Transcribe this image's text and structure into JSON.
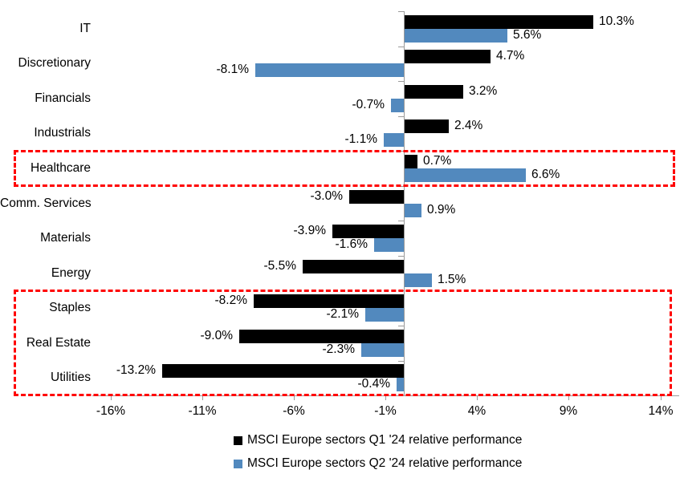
{
  "chart_data": {
    "type": "bar",
    "orientation": "horizontal",
    "categories": [
      "IT",
      "Discretionary",
      "Financials",
      "Industrials",
      "Healthcare",
      "Comm. Services",
      "Materials",
      "Energy",
      "Staples",
      "Real Estate",
      "Utilities"
    ],
    "series": [
      {
        "name": "MSCI Europe sectors Q1 '24 relative performance",
        "color": "#000000",
        "values": [
          10.3,
          4.7,
          3.2,
          2.4,
          0.7,
          -3.0,
          -3.9,
          -5.5,
          -8.2,
          -9.0,
          -13.2
        ]
      },
      {
        "name": "MSCI Europe sectors Q2 '24 relative performance",
        "color": "#5289be",
        "values": [
          5.6,
          -8.1,
          -0.7,
          -1.1,
          6.6,
          0.9,
          -1.6,
          1.5,
          -2.1,
          -2.3,
          -0.4
        ]
      }
    ],
    "data_labels": {
      "q1": [
        "10.3%",
        "4.7%",
        "3.2%",
        "2.4%",
        "0.7%",
        "-3.0%",
        "-3.9%",
        "-5.5%",
        "-8.2%",
        "-9.0%",
        "-13.2%"
      ],
      "q2": [
        "5.6%",
        "-8.1%",
        "-0.7%",
        "-1.1%",
        "6.6%",
        "0.9%",
        "-1.6%",
        "1.5%",
        "-2.1%",
        "-2.3%",
        "-0.4%"
      ]
    },
    "x_axis": {
      "tick_labels": [
        "-16%",
        "-11%",
        "-6%",
        "-1%",
        "4%",
        "9%",
        "14%"
      ],
      "tick_values": [
        -16,
        -11,
        -6,
        -1,
        4,
        9,
        14
      ],
      "min": -17,
      "max": 15,
      "grid": false
    },
    "legend_position": "bottom",
    "highlight_boxes": [
      {
        "categories": [
          "Healthcare"
        ],
        "color": "#ff0000",
        "style": "dashed"
      },
      {
        "categories": [
          "Staples",
          "Real Estate",
          "Utilities"
        ],
        "color": "#ff0000",
        "style": "dashed"
      }
    ]
  },
  "colors": {
    "q1_bar": "#000000",
    "q2_bar": "#5289be",
    "highlight": "#ff0000",
    "axis": "#9b9b9b",
    "background": "#ffffff"
  }
}
